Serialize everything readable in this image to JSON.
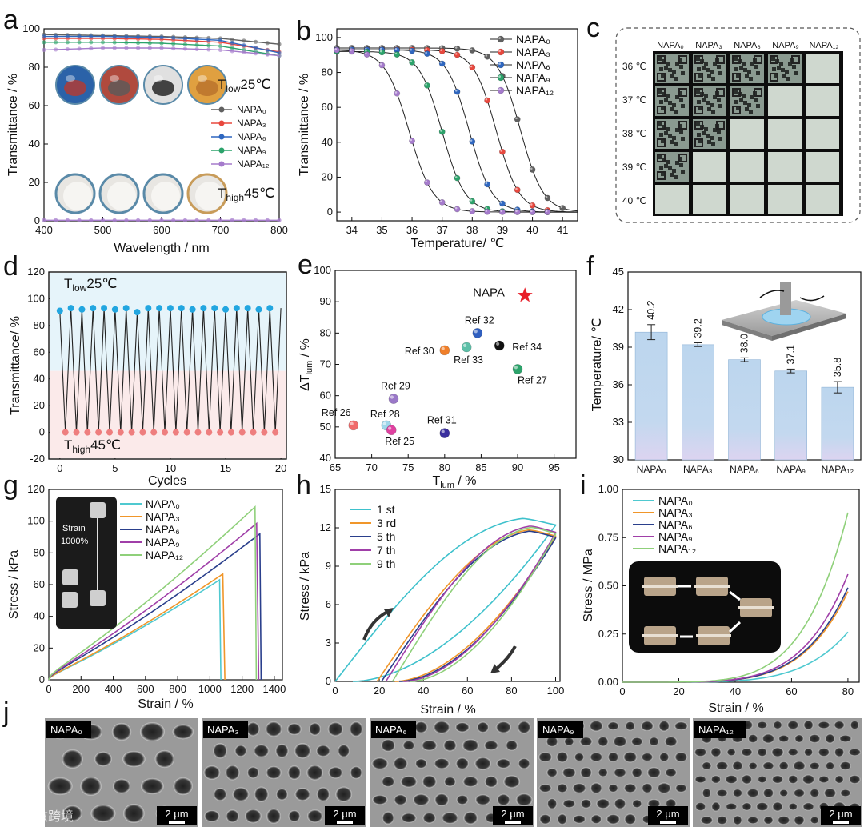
{
  "panels": {
    "a": {
      "label": "a",
      "xlabel": "Wavelength / nm",
      "ylabel": "Transmittance / %",
      "xlim": [
        400,
        800
      ],
      "ylim": [
        0,
        100
      ],
      "xticks": [
        "400",
        "500",
        "600",
        "700",
        "800"
      ],
      "yticks": [
        "0",
        "20",
        "40",
        "60",
        "80",
        "100"
      ],
      "legend": [
        "NAPA₀",
        "NAPA₃",
        "NAPA₆",
        "NAPA₉",
        "NAPA₁₂"
      ],
      "colors": [
        "#606060",
        "#e8483e",
        "#2f67c0",
        "#2ca36b",
        "#a57bcc"
      ],
      "series_high": [
        [
          97,
          96.5,
          96,
          95,
          92
        ],
        [
          95,
          95,
          94.5,
          93,
          88
        ],
        [
          96,
          96,
          95.5,
          94,
          87.5
        ],
        [
          93,
          93,
          92.5,
          91,
          86
        ],
        [
          89,
          90,
          90,
          89,
          86
        ]
      ],
      "series_low": [
        0,
        0,
        0,
        0,
        0
      ],
      "low_text": "T",
      "low_sub": "low",
      "low_value": "25℃",
      "high_text": "T",
      "high_sub": "high",
      "high_value": "45℃"
    },
    "b": {
      "label": "b",
      "xlabel": "Temperature/ ℃",
      "ylabel": "Transmittance / %",
      "xlim": [
        33.5,
        41.5
      ],
      "ylim": [
        -5,
        105
      ],
      "xticks": [
        "34",
        "35",
        "36",
        "37",
        "38",
        "39",
        "40",
        "41"
      ],
      "yticks": [
        "0",
        "20",
        "40",
        "60",
        "80",
        "100"
      ],
      "legend": [
        "NAPA₀",
        "NAPA₃",
        "NAPA₆",
        "NAPA₉",
        "NAPA₁₂"
      ],
      "colors": [
        "#606060",
        "#e8483e",
        "#2f67c0",
        "#2ca36b",
        "#a57bcc"
      ],
      "midpoints": [
        39.6,
        38.8,
        37.9,
        37.0,
        35.9
      ],
      "widths": [
        0.38,
        0.38,
        0.38,
        0.38,
        0.4
      ],
      "tops": [
        94,
        93,
        93,
        92,
        93
      ]
    },
    "c": {
      "label": "c",
      "columns": [
        "NAPA₀",
        "NAPA₃",
        "NAPA₆",
        "NAPA₉",
        "NAPA₁₂"
      ],
      "rows": [
        "36 ℃",
        "37 ℃",
        "38 ℃",
        "39 ℃",
        "40 ℃"
      ],
      "opaque_count": [
        4,
        3,
        2,
        1,
        0
      ]
    },
    "d": {
      "label": "d",
      "xlabel": "Cycles",
      "ylabel": "Transmittance/ %",
      "xlim": [
        -1,
        20.5
      ],
      "ylim": [
        -20,
        120
      ],
      "xticks": [
        "0",
        "5",
        "10",
        "15",
        "20"
      ],
      "yticks": [
        "-20",
        "0",
        "20",
        "40",
        "60",
        "80",
        "100",
        "120"
      ],
      "low_text": "T",
      "low_sub": "low",
      "low_value": "25℃",
      "high_text": "T",
      "high_sub": "high",
      "high_value": "45℃",
      "cycles": 20,
      "high_values": [
        91,
        93,
        92,
        93,
        93,
        92,
        93,
        90,
        93,
        93,
        93,
        93,
        92,
        93,
        93,
        92,
        93,
        93,
        92,
        93
      ],
      "low_values": 0
    },
    "e": {
      "label": "e",
      "xlabel": "T",
      "xlabel_sub": "lum",
      "xlabel_tail": " / %",
      "ylabel": "ΔT",
      "ylabel_sub": "lum",
      "ylabel_tail": " / %",
      "xlim": [
        65,
        98
      ],
      "ylim": [
        40,
        100
      ],
      "xticks": [
        "65",
        "70",
        "75",
        "80",
        "85",
        "90",
        "95"
      ],
      "yticks": [
        "40",
        "50",
        "60",
        "70",
        "80",
        "90",
        "100"
      ],
      "points": [
        {
          "name": "NAPA",
          "x": 91,
          "y": 92,
          "color": "#e8202a",
          "star": true
        },
        {
          "name": "Ref 32",
          "x": 84.5,
          "y": 80,
          "color": "#2f5fc0"
        },
        {
          "name": "Ref 34",
          "x": 87.5,
          "y": 76,
          "color": "#111111"
        },
        {
          "name": "Ref 30",
          "x": 80,
          "y": 74.5,
          "color": "#f07f2a"
        },
        {
          "name": "Ref 33",
          "x": 83,
          "y": 75.5,
          "color": "#5cc0a8"
        },
        {
          "name": "Ref 27",
          "x": 90,
          "y": 68.5,
          "color": "#2ca36b"
        },
        {
          "name": "Ref 29",
          "x": 73,
          "y": 59,
          "color": "#9a78c8"
        },
        {
          "name": "Ref 26",
          "x": 67.5,
          "y": 50.5,
          "color": "#f06a6a"
        },
        {
          "name": "Ref 28",
          "x": 72,
          "y": 50.5,
          "color": "#9fd6ea"
        },
        {
          "name": "Ref 25",
          "x": 72.7,
          "y": 49,
          "color": "#e040a0"
        },
        {
          "name": "Ref 31",
          "x": 80,
          "y": 48,
          "color": "#3a2f9e"
        }
      ]
    },
    "f": {
      "label": "f",
      "ylabel": "Temperature/ ℃",
      "ylim": [
        30,
        45
      ],
      "yticks": [
        "30",
        "33",
        "36",
        "39",
        "42",
        "45"
      ],
      "categories": [
        "NAPA₀",
        "NAPA₃",
        "NAPA₆",
        "NAPA₉",
        "NAPA₁₂"
      ],
      "values": [
        40.2,
        39.2,
        38.0,
        37.1,
        35.8
      ],
      "value_labels": [
        "40.2",
        "39.2",
        "38.0",
        "37.1",
        "35.8"
      ],
      "errors": [
        0.6,
        0.15,
        0.15,
        0.15,
        0.45
      ]
    },
    "g": {
      "label": "g",
      "xlabel": "Strain / %",
      "ylabel": "Stress / kPa",
      "xlim": [
        0,
        1450
      ],
      "ylim": [
        0,
        120
      ],
      "xticks": [
        "0",
        "200",
        "400",
        "600",
        "800",
        "1000",
        "1200",
        "1400"
      ],
      "yticks": [
        "0",
        "20",
        "40",
        "60",
        "80",
        "100",
        "120"
      ],
      "legend": [
        "NAPA₀",
        "NAPA₃",
        "NAPA₆",
        "NAPA₉",
        "NAPA₁₂"
      ],
      "colors": [
        "#4fc9d0",
        "#f0962a",
        "#2a3f8c",
        "#a03fa8",
        "#8fd07a"
      ],
      "break_strain": [
        1060,
        1085,
        1310,
        1295,
        1280
      ],
      "break_stress": [
        63,
        67,
        92,
        99,
        109
      ],
      "inset_text_1": "Strain",
      "inset_text_2": "1000%"
    },
    "h": {
      "label": "h",
      "xlabel": "Strain / %",
      "ylabel": "Stress / kPa",
      "xlim": [
        0,
        102
      ],
      "ylim": [
        0,
        15
      ],
      "xticks": [
        "0",
        "20",
        "40",
        "60",
        "80",
        "100"
      ],
      "yticks": [
        "0",
        "3",
        "6",
        "9",
        "12",
        "15"
      ],
      "legend": [
        "1 st",
        "3 rd",
        "5 th",
        "7 th",
        "9 th"
      ],
      "colors": [
        "#3ec1cc",
        "#f0962a",
        "#2a3f8c",
        "#a03fa8",
        "#8fd07a"
      ],
      "peaks": [
        12.8,
        11.9,
        11.8,
        12.2,
        12.1
      ]
    },
    "i": {
      "label": "i",
      "xlabel": "Strain / %",
      "ylabel": "Stress / MPa",
      "xlim": [
        0,
        84
      ],
      "ylim": [
        0,
        1.0
      ],
      "xticks": [
        "0",
        "20",
        "40",
        "60",
        "80"
      ],
      "yticks": [
        "0.00",
        "0.25",
        "0.50",
        "0.75",
        "1.00"
      ],
      "legend": [
        "NAPA₀",
        "NAPA₃",
        "NAPA₆",
        "NAPA₉",
        "NAPA₁₂"
      ],
      "colors": [
        "#4fc9d0",
        "#f0962a",
        "#2a3f8c",
        "#a03fa8",
        "#8fd07a"
      ],
      "end_values": [
        0.26,
        0.47,
        0.49,
        0.56,
        0.88
      ]
    },
    "j": {
      "label": "j",
      "tags": [
        "NAPA₀",
        "NAPA₃",
        "NAPA₆",
        "NAPA₉",
        "NAPA₁₂"
      ],
      "scalebar": "2 μm",
      "watermark": "大数跨境"
    }
  }
}
